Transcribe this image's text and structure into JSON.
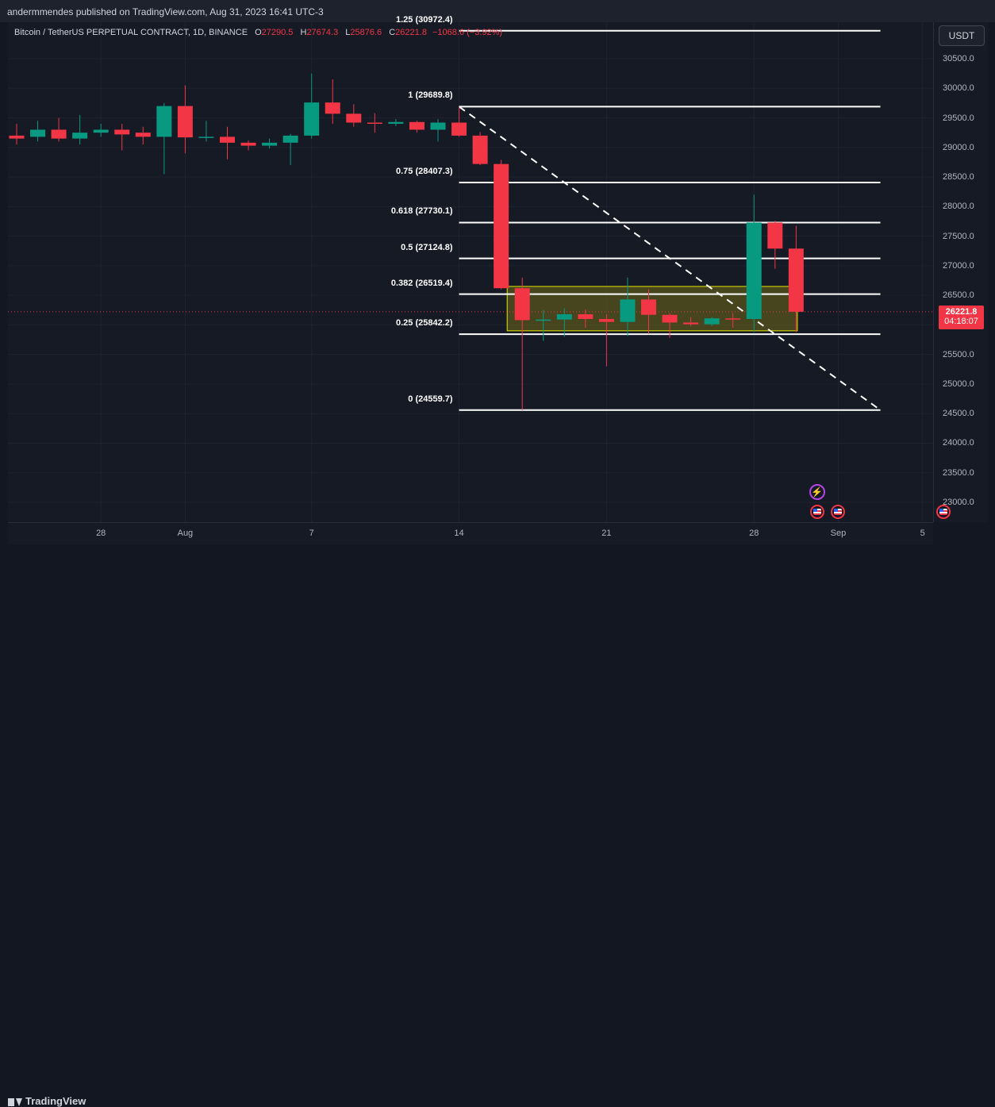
{
  "header": {
    "published_text": "andermmendes published on TradingView.com, Aug 31, 2023 16:41 UTC-3"
  },
  "legend": {
    "symbol": "Bitcoin / TetherUS PERPETUAL CONTRACT, 1D, BINANCE",
    "open_label": "O",
    "open": "27290.5",
    "high_label": "H",
    "high": "27674.3",
    "low_label": "L",
    "low": "25876.6",
    "close_label": "C",
    "close": "26221.8",
    "change": "−1068.6 (−3.92%)"
  },
  "currency_button": "USDT",
  "price_tag": {
    "price": "26221.8",
    "countdown": "04:18:07"
  },
  "footer": {
    "brand": "TradingView"
  },
  "colors": {
    "up": "#089981",
    "down": "#f23645",
    "fib_line": "#ffffff",
    "box_border": "#e6e600",
    "box_fill": "#807a14",
    "bg": "#131722"
  },
  "chart_data": {
    "type": "candlestick",
    "symbol": "BTCUSDT.P",
    "timeframe": "1D",
    "ylim": [
      22600,
      31200
    ],
    "y_ticks": [
      23000,
      23500,
      24000,
      24500,
      25000,
      25500,
      26000,
      26500,
      27000,
      27500,
      28000,
      28500,
      29000,
      29500,
      30000,
      30500
    ],
    "y_tick_labels": [
      "23000.0",
      "23500.0",
      "24000.0",
      "24500.0",
      "25000.0",
      "25500.0",
      "26000.0",
      "26500.0",
      "27000.0",
      "27500.0",
      "28000.0",
      "28500.0",
      "29000.0",
      "29500.0",
      "30000.0",
      "30500.0"
    ],
    "x_ticks": [
      {
        "label": "28",
        "date": "2023-07-28"
      },
      {
        "label": "Aug",
        "date": "2023-08-01"
      },
      {
        "label": "7",
        "date": "2023-08-07"
      },
      {
        "label": "14",
        "date": "2023-08-14"
      },
      {
        "label": "21",
        "date": "2023-08-21"
      },
      {
        "label": "28",
        "date": "2023-08-28"
      },
      {
        "label": "Sep",
        "date": "2023-09-01"
      },
      {
        "label": "5",
        "date": "2023-09-05"
      }
    ],
    "candles": [
      {
        "date": "2023-07-24",
        "o": 29200,
        "h": 29400,
        "l": 29050,
        "c": 29150
      },
      {
        "date": "2023-07-25",
        "o": 29180,
        "h": 29450,
        "l": 29100,
        "c": 29300
      },
      {
        "date": "2023-07-26",
        "o": 29300,
        "h": 29500,
        "l": 29100,
        "c": 29150
      },
      {
        "date": "2023-07-27",
        "o": 29150,
        "h": 29550,
        "l": 29050,
        "c": 29250
      },
      {
        "date": "2023-07-28",
        "o": 29250,
        "h": 29400,
        "l": 29180,
        "c": 29300
      },
      {
        "date": "2023-07-29",
        "o": 29300,
        "h": 29400,
        "l": 28950,
        "c": 29220
      },
      {
        "date": "2023-07-30",
        "o": 29250,
        "h": 29350,
        "l": 29050,
        "c": 29180
      },
      {
        "date": "2023-07-31",
        "o": 29180,
        "h": 29750,
        "l": 28550,
        "c": 29700
      },
      {
        "date": "2023-08-01",
        "o": 29700,
        "h": 30050,
        "l": 28900,
        "c": 29170
      },
      {
        "date": "2023-08-02",
        "o": 29170,
        "h": 29450,
        "l": 29100,
        "c": 29180
      },
      {
        "date": "2023-08-03",
        "o": 29180,
        "h": 29350,
        "l": 28800,
        "c": 29080
      },
      {
        "date": "2023-08-04",
        "o": 29080,
        "h": 29120,
        "l": 28950,
        "c": 29030
      },
      {
        "date": "2023-08-05",
        "o": 29030,
        "h": 29150,
        "l": 28980,
        "c": 29080
      },
      {
        "date": "2023-08-06",
        "o": 29080,
        "h": 29230,
        "l": 28700,
        "c": 29200
      },
      {
        "date": "2023-08-07",
        "o": 29200,
        "h": 30250,
        "l": 29150,
        "c": 29760
      },
      {
        "date": "2023-08-08",
        "o": 29760,
        "h": 30150,
        "l": 29400,
        "c": 29570
      },
      {
        "date": "2023-08-09",
        "o": 29570,
        "h": 29730,
        "l": 29350,
        "c": 29420
      },
      {
        "date": "2023-08-10",
        "o": 29420,
        "h": 29580,
        "l": 29250,
        "c": 29400
      },
      {
        "date": "2023-08-11",
        "o": 29400,
        "h": 29480,
        "l": 29360,
        "c": 29430
      },
      {
        "date": "2023-08-12",
        "o": 29430,
        "h": 29450,
        "l": 29250,
        "c": 29300
      },
      {
        "date": "2023-08-13",
        "o": 29300,
        "h": 29480,
        "l": 29100,
        "c": 29420
      },
      {
        "date": "2023-08-14",
        "o": 29420,
        "h": 29680,
        "l": 29180,
        "c": 29200
      },
      {
        "date": "2023-08-15",
        "o": 29200,
        "h": 29260,
        "l": 28700,
        "c": 28720
      },
      {
        "date": "2023-08-16",
        "o": 28720,
        "h": 28790,
        "l": 26600,
        "c": 26620
      },
      {
        "date": "2023-08-17",
        "o": 26620,
        "h": 26800,
        "l": 24560,
        "c": 26080
      },
      {
        "date": "2023-08-18",
        "o": 26080,
        "h": 26250,
        "l": 25730,
        "c": 26090
      },
      {
        "date": "2023-08-19",
        "o": 26090,
        "h": 26280,
        "l": 25800,
        "c": 26180
      },
      {
        "date": "2023-08-20",
        "o": 26180,
        "h": 26260,
        "l": 25950,
        "c": 26100
      },
      {
        "date": "2023-08-21",
        "o": 26100,
        "h": 26180,
        "l": 25300,
        "c": 26050
      },
      {
        "date": "2023-08-22",
        "o": 26050,
        "h": 26800,
        "l": 25810,
        "c": 26430
      },
      {
        "date": "2023-08-23",
        "o": 26430,
        "h": 26600,
        "l": 25850,
        "c": 26170
      },
      {
        "date": "2023-08-24",
        "o": 26170,
        "h": 26200,
        "l": 25780,
        "c": 26040
      },
      {
        "date": "2023-08-25",
        "o": 26040,
        "h": 26130,
        "l": 25980,
        "c": 26010
      },
      {
        "date": "2023-08-26",
        "o": 26010,
        "h": 26130,
        "l": 25980,
        "c": 26110
      },
      {
        "date": "2023-08-27",
        "o": 26110,
        "h": 26200,
        "l": 25950,
        "c": 26100
      },
      {
        "date": "2023-08-28",
        "o": 26100,
        "h": 28200,
        "l": 25880,
        "c": 27730
      },
      {
        "date": "2023-08-29",
        "o": 27730,
        "h": 27760,
        "l": 26950,
        "c": 27290
      },
      {
        "date": "2023-08-30",
        "o": 27290,
        "h": 27674,
        "l": 25877,
        "c": 26222
      }
    ],
    "fib_levels": [
      {
        "ratio": 1.25,
        "price": 30972.4,
        "label": "1.25 (30972.4)"
      },
      {
        "ratio": 1,
        "price": 29689.8,
        "label": "1 (29689.8)"
      },
      {
        "ratio": 0.75,
        "price": 28407.3,
        "label": "0.75 (28407.3)"
      },
      {
        "ratio": 0.618,
        "price": 27730.1,
        "label": "0.618 (27730.1)"
      },
      {
        "ratio": 0.5,
        "price": 27124.8,
        "label": "0.5 (27124.8)"
      },
      {
        "ratio": 0.382,
        "price": 26519.4,
        "label": "0.382 (26519.4)"
      },
      {
        "ratio": 0.25,
        "price": 25842.2,
        "label": "0.25 (25842.2)"
      },
      {
        "ratio": 0,
        "price": 24559.7,
        "label": "0 (24559.7)"
      }
    ],
    "fib_start_date": "2023-08-14",
    "fib_end_date": "2023-09-03",
    "trend_line": {
      "from": {
        "date": "2023-08-14",
        "price": 29689.8
      },
      "to": {
        "date": "2023-09-03",
        "price": 24559.7
      }
    },
    "range_box": {
      "from_date": "2023-08-17",
      "to_date": "2023-08-31",
      "top": 26650,
      "bottom": 25900
    },
    "current_price": 26221.8,
    "event_dates": [
      "2023-08-31",
      "2023-09-01",
      "2023-09-06"
    ],
    "lightning_event_date": "2023-08-31"
  }
}
